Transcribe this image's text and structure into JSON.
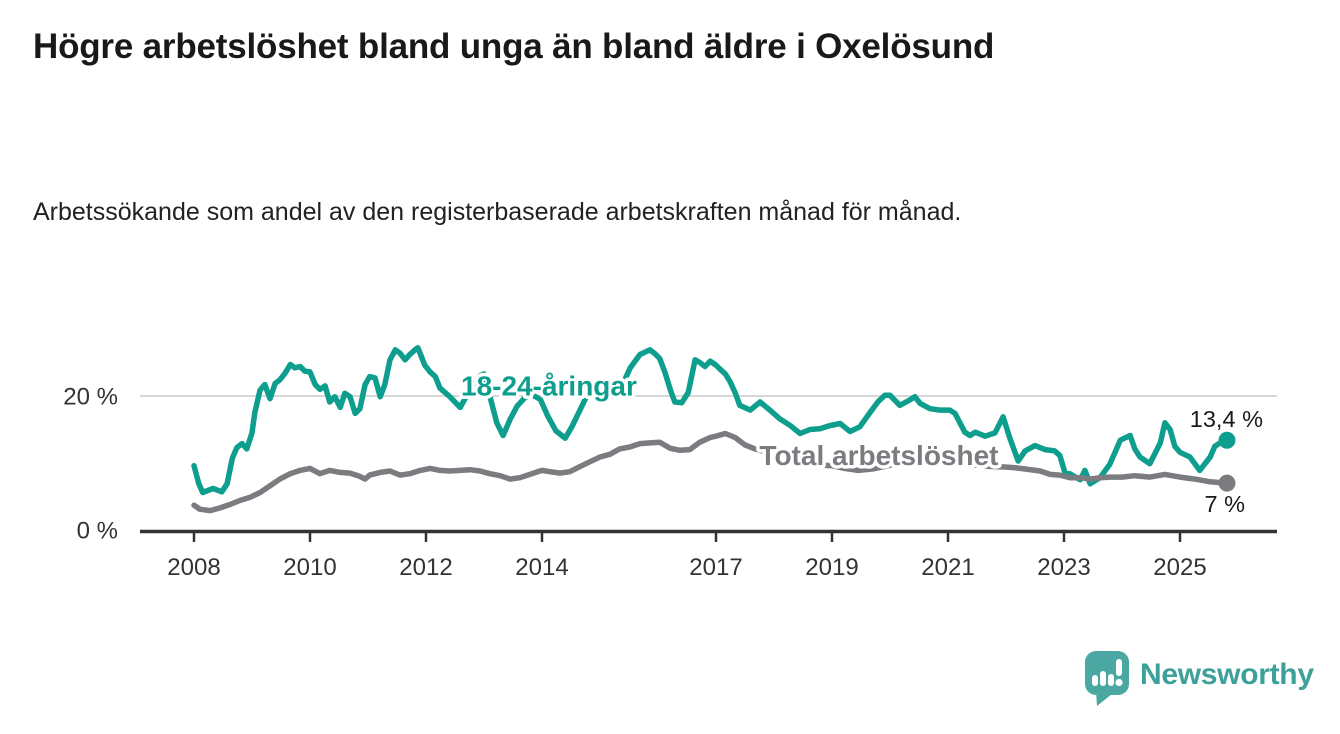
{
  "title": "Högre arbetslöshet bland unga än bland äldre i Oxelösund",
  "subtitle": "Arbetssökande som andel av den registerbaserade arbetskraften månad för månad.",
  "branding": {
    "logo_text": "Newsworthy",
    "logo_bubble_color": "#4aa7a1",
    "logo_text_color": "#3da09a"
  },
  "colors": {
    "young_series": "#0e9e8e",
    "total_series": "#7b7c80",
    "axis": "#333333",
    "tick_label": "#333333",
    "gridline": "#d8d8d8",
    "end_label": "#1a1a1a",
    "background": "#ffffff"
  },
  "chart_data": {
    "type": "line",
    "title": "",
    "xlabel": "",
    "ylabel": "",
    "y_unit": "%",
    "x_unit": "year (decimal, monthly data)",
    "xlim": [
      2007.05,
      2026.7
    ],
    "ylim": [
      0,
      28
    ],
    "grid": "single light horizontal gridline at 20 %",
    "legend_position": "inline labels on lines",
    "gridlines": [
      20
    ],
    "y_ticks": [
      {
        "value": 0,
        "label": "0 %"
      },
      {
        "value": 20,
        "label": "20 %"
      }
    ],
    "x_ticks": [
      {
        "value": 2008,
        "label": "2008"
      },
      {
        "value": 2010,
        "label": "2010"
      },
      {
        "value": 2012,
        "label": "2012"
      },
      {
        "value": 2014,
        "label": "2014"
      },
      {
        "value": 2017,
        "label": "2017"
      },
      {
        "value": 2019,
        "label": "2019"
      },
      {
        "value": 2021,
        "label": "2021"
      },
      {
        "value": 2023,
        "label": "2023"
      },
      {
        "value": 2025,
        "label": "2025"
      }
    ],
    "series": [
      {
        "name": "18-24-åringar",
        "color": "#0e9e8e",
        "end_label": "13,4 %",
        "end_value": 13.4,
        "label_pos": [
          2014.12,
          20.1
        ],
        "points": [
          [
            2008.0,
            9.6
          ],
          [
            2008.08,
            7.0
          ],
          [
            2008.15,
            5.6
          ],
          [
            2008.33,
            6.2
          ],
          [
            2008.48,
            5.7
          ],
          [
            2008.57,
            6.9
          ],
          [
            2008.66,
            10.7
          ],
          [
            2008.74,
            12.3
          ],
          [
            2008.83,
            12.9
          ],
          [
            2008.91,
            12.1
          ],
          [
            2009.0,
            14.5
          ],
          [
            2009.05,
            17.6
          ],
          [
            2009.14,
            20.9
          ],
          [
            2009.22,
            21.7
          ],
          [
            2009.31,
            19.6
          ],
          [
            2009.4,
            21.9
          ],
          [
            2009.48,
            22.4
          ],
          [
            2009.57,
            23.4
          ],
          [
            2009.66,
            24.7
          ],
          [
            2009.74,
            24.2
          ],
          [
            2009.83,
            24.4
          ],
          [
            2009.91,
            23.7
          ],
          [
            2010.0,
            23.6
          ],
          [
            2010.09,
            21.7
          ],
          [
            2010.17,
            21.0
          ],
          [
            2010.26,
            21.5
          ],
          [
            2010.34,
            19.1
          ],
          [
            2010.43,
            19.9
          ],
          [
            2010.52,
            18.3
          ],
          [
            2010.6,
            20.4
          ],
          [
            2010.69,
            19.9
          ],
          [
            2010.78,
            17.4
          ],
          [
            2010.86,
            18.1
          ],
          [
            2010.95,
            21.7
          ],
          [
            2011.03,
            22.9
          ],
          [
            2011.12,
            22.7
          ],
          [
            2011.21,
            19.9
          ],
          [
            2011.29,
            21.7
          ],
          [
            2011.38,
            25.4
          ],
          [
            2011.47,
            26.9
          ],
          [
            2011.55,
            26.4
          ],
          [
            2011.64,
            25.4
          ],
          [
            2011.72,
            26.2
          ],
          [
            2011.81,
            26.9
          ],
          [
            2011.86,
            27.2
          ],
          [
            2011.98,
            24.6
          ],
          [
            2012.07,
            23.6
          ],
          [
            2012.16,
            22.9
          ],
          [
            2012.24,
            21.2
          ],
          [
            2012.41,
            19.9
          ],
          [
            2012.59,
            18.3
          ],
          [
            2012.76,
            21.0
          ],
          [
            2012.93,
            23.0
          ],
          [
            2013.0,
            23.3
          ],
          [
            2013.1,
            20.0
          ],
          [
            2013.22,
            16.0
          ],
          [
            2013.33,
            14.1
          ],
          [
            2013.45,
            16.5
          ],
          [
            2013.57,
            18.5
          ],
          [
            2013.71,
            19.8
          ],
          [
            2013.83,
            20.2
          ],
          [
            2013.97,
            19.5
          ],
          [
            2014.1,
            17.0
          ],
          [
            2014.24,
            14.8
          ],
          [
            2014.4,
            13.7
          ],
          [
            2014.52,
            15.5
          ],
          [
            2014.66,
            18.0
          ],
          [
            2014.76,
            19.8
          ],
          [
            2014.88,
            20.3
          ],
          [
            2015.0,
            20.6
          ],
          [
            2015.14,
            20.0
          ],
          [
            2015.26,
            20.1
          ],
          [
            2015.38,
            21.5
          ],
          [
            2015.52,
            24.2
          ],
          [
            2015.69,
            26.2
          ],
          [
            2015.86,
            26.9
          ],
          [
            2015.95,
            26.3
          ],
          [
            2016.03,
            25.6
          ],
          [
            2016.12,
            23.5
          ],
          [
            2016.21,
            21.0
          ],
          [
            2016.29,
            19.1
          ],
          [
            2016.41,
            19.0
          ],
          [
            2016.52,
            20.5
          ],
          [
            2016.64,
            25.4
          ],
          [
            2016.72,
            25.0
          ],
          [
            2016.81,
            24.4
          ],
          [
            2016.9,
            25.2
          ],
          [
            2017.0,
            24.6
          ],
          [
            2017.07,
            24.0
          ],
          [
            2017.16,
            23.3
          ],
          [
            2017.24,
            22.2
          ],
          [
            2017.33,
            20.5
          ],
          [
            2017.41,
            18.6
          ],
          [
            2017.59,
            17.9
          ],
          [
            2017.76,
            19.1
          ],
          [
            2017.93,
            17.9
          ],
          [
            2018.1,
            16.6
          ],
          [
            2018.28,
            15.6
          ],
          [
            2018.45,
            14.4
          ],
          [
            2018.62,
            15.0
          ],
          [
            2018.79,
            15.1
          ],
          [
            2018.97,
            15.6
          ],
          [
            2019.14,
            15.9
          ],
          [
            2019.31,
            14.7
          ],
          [
            2019.48,
            15.4
          ],
          [
            2019.66,
            17.6
          ],
          [
            2019.79,
            19.1
          ],
          [
            2019.91,
            20.1
          ],
          [
            2020.0,
            20.1
          ],
          [
            2020.17,
            18.6
          ],
          [
            2020.34,
            19.4
          ],
          [
            2020.43,
            19.9
          ],
          [
            2020.52,
            18.9
          ],
          [
            2020.69,
            18.1
          ],
          [
            2020.86,
            17.9
          ],
          [
            2021.03,
            17.9
          ],
          [
            2021.12,
            17.4
          ],
          [
            2021.29,
            14.6
          ],
          [
            2021.38,
            14.1
          ],
          [
            2021.47,
            14.6
          ],
          [
            2021.64,
            14.0
          ],
          [
            2021.81,
            14.5
          ],
          [
            2021.95,
            16.9
          ],
          [
            2022.07,
            13.6
          ],
          [
            2022.21,
            10.3
          ],
          [
            2022.33,
            11.8
          ],
          [
            2022.5,
            12.6
          ],
          [
            2022.67,
            12.0
          ],
          [
            2022.84,
            11.8
          ],
          [
            2022.93,
            11.1
          ],
          [
            2023.02,
            8.4
          ],
          [
            2023.1,
            8.4
          ],
          [
            2023.28,
            7.5
          ],
          [
            2023.36,
            8.9
          ],
          [
            2023.45,
            6.9
          ],
          [
            2023.62,
            7.8
          ],
          [
            2023.79,
            9.8
          ],
          [
            2023.97,
            13.4
          ],
          [
            2024.14,
            14.1
          ],
          [
            2024.22,
            12.1
          ],
          [
            2024.31,
            10.9
          ],
          [
            2024.48,
            9.9
          ],
          [
            2024.66,
            13.0
          ],
          [
            2024.74,
            16.0
          ],
          [
            2024.83,
            15.0
          ],
          [
            2024.91,
            12.5
          ],
          [
            2025.0,
            11.6
          ],
          [
            2025.17,
            10.9
          ],
          [
            2025.34,
            8.9
          ],
          [
            2025.52,
            10.9
          ],
          [
            2025.6,
            12.5
          ],
          [
            2025.69,
            13.0
          ],
          [
            2025.81,
            13.4
          ]
        ]
      },
      {
        "name": "Total arbetslöshet",
        "color": "#7b7c80",
        "end_label": "7 %",
        "end_value": 7.0,
        "label_pos": [
          2019.81,
          9.7
        ],
        "points": [
          [
            2008.0,
            3.7
          ],
          [
            2008.1,
            3.1
          ],
          [
            2008.28,
            2.9
          ],
          [
            2008.45,
            3.3
          ],
          [
            2008.62,
            3.8
          ],
          [
            2008.79,
            4.4
          ],
          [
            2008.97,
            4.9
          ],
          [
            2009.14,
            5.6
          ],
          [
            2009.31,
            6.6
          ],
          [
            2009.48,
            7.6
          ],
          [
            2009.66,
            8.4
          ],
          [
            2009.83,
            8.9
          ],
          [
            2010.0,
            9.2
          ],
          [
            2010.17,
            8.4
          ],
          [
            2010.34,
            8.9
          ],
          [
            2010.52,
            8.6
          ],
          [
            2010.69,
            8.5
          ],
          [
            2010.86,
            8.0
          ],
          [
            2010.95,
            7.6
          ],
          [
            2011.03,
            8.2
          ],
          [
            2011.21,
            8.6
          ],
          [
            2011.38,
            8.8
          ],
          [
            2011.55,
            8.2
          ],
          [
            2011.72,
            8.4
          ],
          [
            2011.9,
            8.9
          ],
          [
            2012.07,
            9.2
          ],
          [
            2012.24,
            8.9
          ],
          [
            2012.41,
            8.8
          ],
          [
            2012.59,
            8.9
          ],
          [
            2012.76,
            9.0
          ],
          [
            2012.93,
            8.8
          ],
          [
            2013.1,
            8.4
          ],
          [
            2013.28,
            8.1
          ],
          [
            2013.45,
            7.6
          ],
          [
            2013.62,
            7.8
          ],
          [
            2013.79,
            8.3
          ],
          [
            2014.0,
            8.9
          ],
          [
            2014.14,
            8.7
          ],
          [
            2014.31,
            8.5
          ],
          [
            2014.48,
            8.7
          ],
          [
            2014.66,
            9.5
          ],
          [
            2014.83,
            10.2
          ],
          [
            2015.0,
            10.9
          ],
          [
            2015.17,
            11.3
          ],
          [
            2015.34,
            12.1
          ],
          [
            2015.52,
            12.4
          ],
          [
            2015.69,
            12.9
          ],
          [
            2015.86,
            13.0
          ],
          [
            2016.03,
            13.1
          ],
          [
            2016.21,
            12.2
          ],
          [
            2016.38,
            11.9
          ],
          [
            2016.55,
            12.0
          ],
          [
            2016.72,
            13.1
          ],
          [
            2016.9,
            13.8
          ],
          [
            2017.0,
            14.0
          ],
          [
            2017.16,
            14.4
          ],
          [
            2017.33,
            13.8
          ],
          [
            2017.5,
            12.7
          ],
          [
            2017.67,
            12.1
          ],
          [
            2017.84,
            11.7
          ],
          [
            2018.02,
            11.3
          ],
          [
            2018.28,
            10.7
          ],
          [
            2018.53,
            10.2
          ],
          [
            2018.79,
            9.7
          ],
          [
            2019.0,
            9.6
          ],
          [
            2019.22,
            9.2
          ],
          [
            2019.45,
            8.9
          ],
          [
            2019.69,
            9.1
          ],
          [
            2019.91,
            9.5
          ],
          [
            2020.17,
            10.0
          ],
          [
            2020.43,
            10.4
          ],
          [
            2020.69,
            10.3
          ],
          [
            2020.95,
            10.1
          ],
          [
            2021.21,
            9.9
          ],
          [
            2021.47,
            9.7
          ],
          [
            2021.72,
            9.5
          ],
          [
            2021.98,
            9.4
          ],
          [
            2022.16,
            9.3
          ],
          [
            2022.33,
            9.1
          ],
          [
            2022.59,
            8.8
          ],
          [
            2022.76,
            8.3
          ],
          [
            2022.93,
            8.2
          ],
          [
            2023.1,
            7.8
          ],
          [
            2023.28,
            7.8
          ],
          [
            2023.45,
            7.6
          ],
          [
            2023.62,
            7.8
          ],
          [
            2023.79,
            7.9
          ],
          [
            2024.0,
            7.9
          ],
          [
            2024.22,
            8.1
          ],
          [
            2024.48,
            7.9
          ],
          [
            2024.74,
            8.3
          ],
          [
            2025.0,
            7.9
          ],
          [
            2025.26,
            7.6
          ],
          [
            2025.52,
            7.2
          ],
          [
            2025.81,
            7.0
          ]
        ]
      }
    ]
  }
}
